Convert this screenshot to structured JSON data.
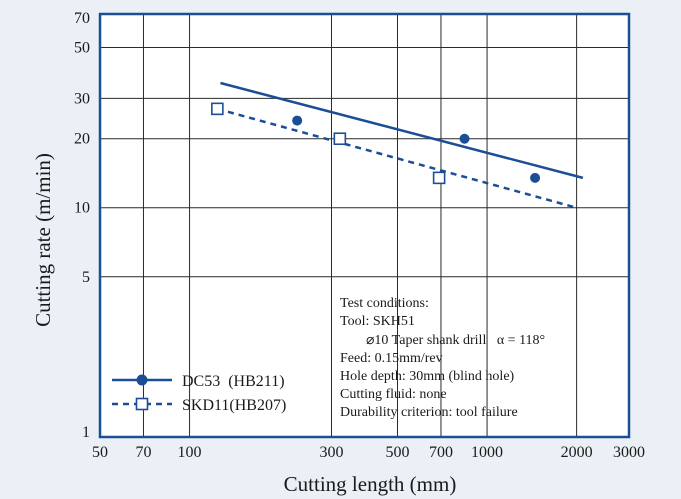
{
  "chart_data": {
    "type": "scatter",
    "xlabel": "Cutting length (mm)",
    "ylabel": "Cutting rate (m/min)",
    "x_scale": "log",
    "y_scale": "log",
    "xlim": [
      50,
      3000
    ],
    "ylim": [
      1,
      70
    ],
    "x_ticks": [
      50,
      70,
      100,
      300,
      500,
      700,
      1000,
      2000,
      3000
    ],
    "x_tick_labels": [
      "50",
      "70",
      "100",
      "300",
      "500",
      "700",
      "1000",
      "2000",
      "3000"
    ],
    "y_ticks": [
      1,
      5,
      10,
      20,
      30,
      50,
      70
    ],
    "y_tick_labels": [
      "1",
      "5",
      "10",
      "20",
      "30",
      "50",
      "70"
    ],
    "grid": true,
    "series": [
      {
        "name": "DC53  (HB211)",
        "marker": "filled-circle",
        "line": "solid",
        "color": "#1c4e96",
        "points": [
          [
            230,
            24
          ],
          [
            840,
            20
          ],
          [
            1450,
            13.5
          ]
        ],
        "trend": [
          [
            127,
            35
          ],
          [
            2100,
            13.5
          ]
        ]
      },
      {
        "name": "SKD11(HB207)",
        "marker": "open-square",
        "line": "dashed",
        "color": "#1c4e96",
        "points": [
          [
            124,
            27
          ],
          [
            320,
            20
          ],
          [
            690,
            13.5
          ]
        ],
        "trend": [
          [
            124,
            27
          ],
          [
            2000,
            10
          ]
        ]
      }
    ],
    "annotations": [
      "Test conditions:",
      "Tool: SKH51",
      "⌀10 Taper shank drill   α = 118°",
      "Feed: 0.15mm/rev",
      "Hole depth: 30mm (blind hole)",
      "Cutting fluid: none",
      "Durability criterion: tool failure"
    ],
    "legend_position": "bottom-left"
  },
  "colors": {
    "background": "#eaf0f5",
    "plot_background": "#ffffff",
    "frame": "#1c4e96",
    "series": "#1c4e96",
    "grid": "#2a2a2a"
  }
}
